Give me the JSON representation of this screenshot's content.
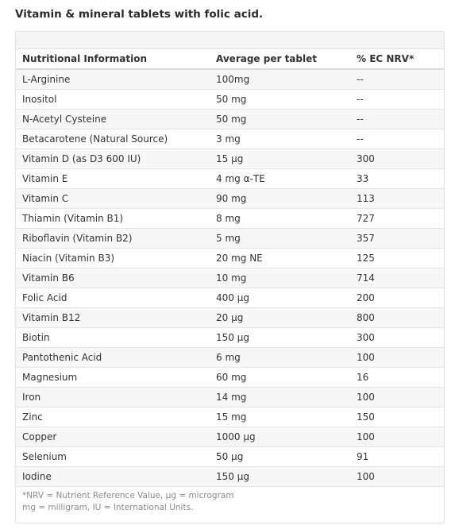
{
  "page": {
    "title": "Vitamin & mineral tablets with folic acid."
  },
  "table": {
    "headers": [
      "Nutritional Information",
      "Average per tablet",
      "% EC NRV*"
    ],
    "rows": [
      [
        "L-Arginine",
        "100mg",
        "--"
      ],
      [
        "Inositol",
        "50 mg",
        "--"
      ],
      [
        "N-Acetyl Cysteine",
        "50 mg",
        "--"
      ],
      [
        "Betacarotene (Natural Source)",
        "3 mg",
        "--"
      ],
      [
        "Vitamin D (as D3 600 IU)",
        "15 µg",
        "300"
      ],
      [
        "Vitamin E",
        "4 mg α-TE",
        "33"
      ],
      [
        "Vitamin C",
        "90 mg",
        "113"
      ],
      [
        "Thiamin (Vitamin B1)",
        "8 mg",
        "727"
      ],
      [
        "Riboflavin (Vitamin B2)",
        "5 mg",
        "357"
      ],
      [
        "Niacin (Vitamin B3)",
        "20 mg NE",
        "125"
      ],
      [
        "Vitamin B6",
        "10 mg",
        "714"
      ],
      [
        "Folic Acid",
        "400 µg",
        "200"
      ],
      [
        "Vitamin B12",
        "20 µg",
        "800"
      ],
      [
        "Biotin",
        "150 µg",
        "300"
      ],
      [
        "Pantothenic Acid",
        "6 mg",
        "100"
      ],
      [
        "Magnesium",
        "60 mg",
        "16"
      ],
      [
        "Iron",
        "14 mg",
        "100"
      ],
      [
        "Zinc",
        "15 mg",
        "150"
      ],
      [
        "Copper",
        "1000 µg",
        "100"
      ],
      [
        "Selenium",
        "50 µg",
        "91"
      ],
      [
        "Iodine",
        "150 µg",
        "100"
      ]
    ]
  },
  "footnote": {
    "line1": "*NRV = Nutrient Reference Value, µg = microgram",
    "line2": "mg = milligram, IU = International Units."
  }
}
